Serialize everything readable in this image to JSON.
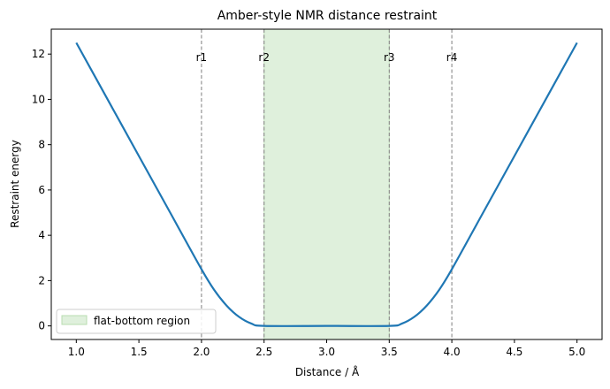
{
  "chart_data": {
    "type": "line",
    "title": "Amber-style NMR distance restraint",
    "xlabel": "Distance / Å",
    "ylabel": "Restraint energy",
    "xlim": [
      0.8,
      5.2
    ],
    "ylim": [
      -0.6,
      13.1
    ],
    "xticks": [
      1.0,
      1.5,
      2.0,
      2.5,
      3.0,
      3.5,
      4.0,
      4.5,
      5.0
    ],
    "xtick_labels": [
      "1.0",
      "1.5",
      "2.0",
      "2.5",
      "3.0",
      "3.5",
      "4.0",
      "4.5",
      "5.0"
    ],
    "yticks": [
      0,
      2,
      4,
      6,
      8,
      10,
      12
    ],
    "ytick_labels": [
      "0",
      "2",
      "4",
      "6",
      "8",
      "10",
      "12"
    ],
    "grid": false,
    "series": [
      {
        "color": "#1f77b4",
        "x": [
          1.0,
          1.25,
          1.5,
          1.75,
          2.0,
          2.1,
          2.2,
          2.3,
          2.4,
          2.5,
          3.0,
          3.5,
          3.6,
          3.7,
          3.8,
          3.9,
          4.0,
          4.25,
          4.5,
          4.75,
          5.0
        ],
        "y": [
          12.5,
          10.0,
          7.5,
          5.0,
          2.5,
          1.6,
          0.9,
          0.4,
          0.1,
          0.0,
          0.0,
          0.0,
          0.1,
          0.4,
          0.9,
          1.6,
          2.5,
          5.0,
          7.5,
          10.0,
          12.5
        ]
      }
    ],
    "vlines": [
      {
        "x": 2.0,
        "label": "r1"
      },
      {
        "x": 2.5,
        "label": "r2"
      },
      {
        "x": 3.5,
        "label": "r3"
      },
      {
        "x": 4.0,
        "label": "r4"
      }
    ],
    "shaded_region": {
      "x0": 2.5,
      "x1": 3.5,
      "label": "flat-bottom region",
      "color": "#dff0dc",
      "edge_color": "#b8dcb0"
    },
    "legend": {
      "placement": "lower-left",
      "entries": [
        "flat-bottom region"
      ]
    }
  }
}
